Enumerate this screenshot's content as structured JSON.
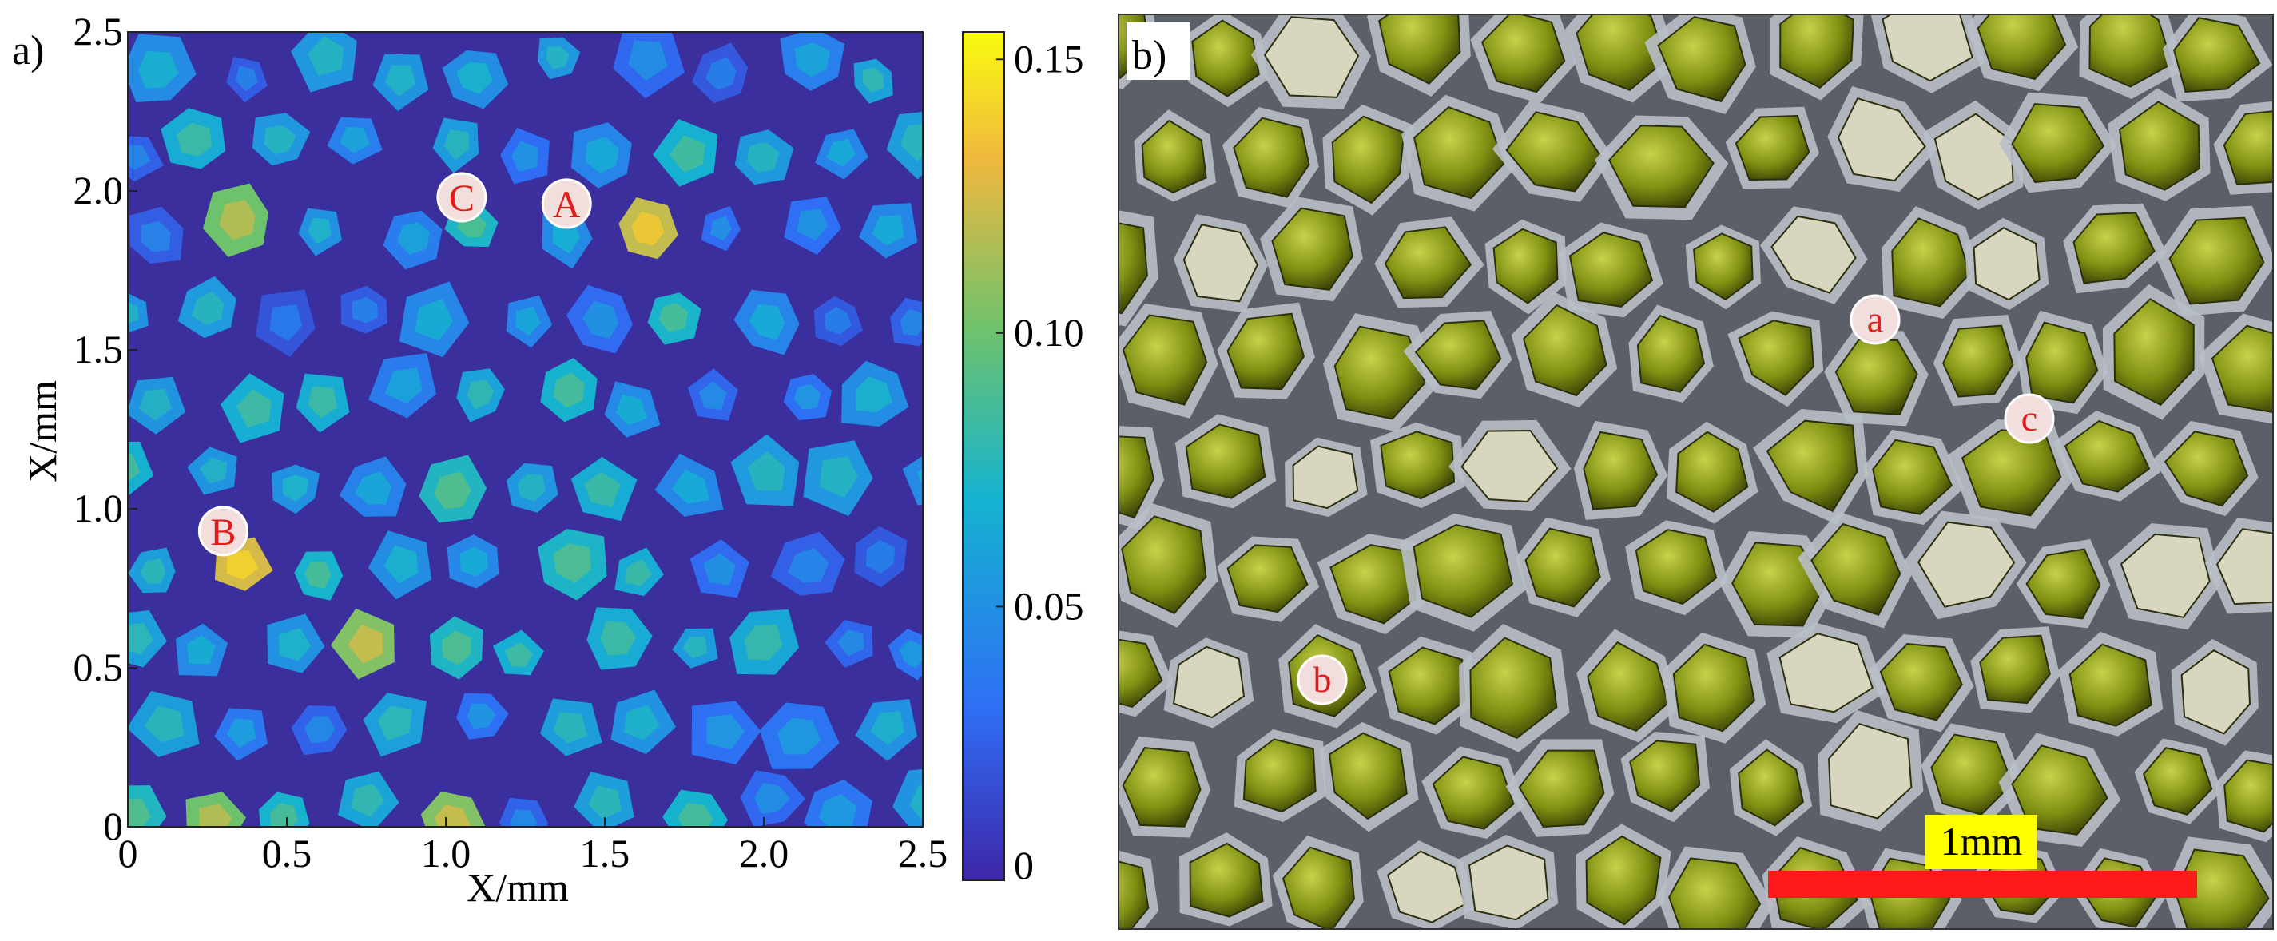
{
  "panel_a": {
    "label": "a)",
    "x_axis_label": "X/mm",
    "y_axis_label": "X/mm",
    "x_ticks": [
      "0",
      "0.5",
      "1.0",
      "1.5",
      "2.0",
      "2.5"
    ],
    "y_ticks": [
      "0",
      "0.5",
      "1.0",
      "1.5",
      "2.0",
      "2.5"
    ],
    "colorbar_ticks": [
      "0",
      "0.05",
      "0.10",
      "0.15"
    ],
    "markers": [
      "A",
      "B",
      "C"
    ],
    "colors": {
      "background": "#3a2f9c",
      "colormap": [
        "#3e26a8",
        "#2f6ef5",
        "#15b3d0",
        "#6fc26c",
        "#f0b83e",
        "#f9fb0e"
      ]
    }
  },
  "panel_b": {
    "label": "b)",
    "markers": [
      "a",
      "b",
      "c"
    ],
    "scale_bar": "1mm",
    "colors": {
      "scale_bar": "#ff1a1a",
      "scale_label_bg": "#ffff00",
      "crystal": "#8a9a10",
      "network": "#b9bfc6"
    }
  },
  "chart_data": {
    "type": "heatmap",
    "xlim": [
      0,
      2.5
    ],
    "ylim": [
      0,
      2.5
    ],
    "clim": [
      0,
      0.155
    ],
    "xlabel": "X/mm",
    "ylabel": "X/mm",
    "annotations": [
      {
        "label": "A",
        "x": 1.38,
        "y": 1.96
      },
      {
        "label": "B",
        "x": 0.3,
        "y": 0.93
      },
      {
        "label": "C",
        "x": 1.05,
        "y": 1.98
      }
    ]
  }
}
